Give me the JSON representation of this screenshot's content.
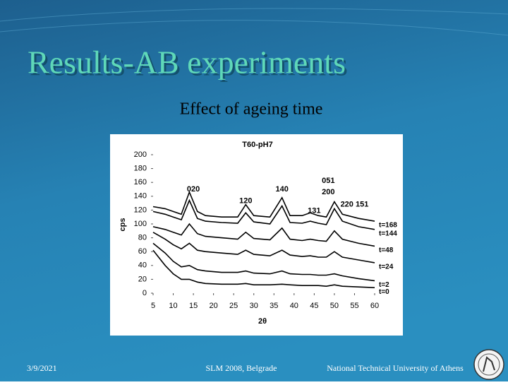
{
  "slide": {
    "title": "Results-AB experiments",
    "subtitle": "Effect of ageing time",
    "footer_date": "3/9/2021",
    "footer_event": "SLM 2008, Belgrade",
    "footer_org": "National Technical University of Athens"
  },
  "chart_data": {
    "type": "line",
    "title": "T60-pH7",
    "xlabel": "2θ",
    "ylabel": "cps",
    "x": [
      5,
      8,
      10,
      12,
      14,
      16,
      18,
      22,
      26,
      28,
      30,
      34,
      37,
      39,
      42,
      44,
      46,
      48,
      50,
      52,
      56,
      60
    ],
    "series": [
      {
        "name": "t=168",
        "color": "#000000",
        "values": [
          125,
          122,
          118,
          114,
          146,
          118,
          112,
          110,
          110,
          128,
          112,
          110,
          138,
          112,
          112,
          116,
          112,
          110,
          132,
          114,
          108,
          104
        ]
      },
      {
        "name": "t=144",
        "color": "#000000",
        "values": [
          118,
          114,
          110,
          106,
          134,
          108,
          104,
          102,
          101,
          116,
          103,
          100,
          126,
          102,
          101,
          104,
          101,
          99,
          122,
          104,
          96,
          92
        ]
      },
      {
        "name": "t=48",
        "color": "#000000",
        "values": [
          96,
          92,
          88,
          84,
          100,
          86,
          82,
          80,
          78,
          88,
          79,
          77,
          94,
          78,
          76,
          78,
          76,
          75,
          90,
          78,
          72,
          68
        ]
      },
      {
        "name": "t=24",
        "color": "#000000",
        "values": [
          88,
          78,
          70,
          64,
          72,
          62,
          60,
          58,
          56,
          62,
          56,
          54,
          62,
          55,
          53,
          54,
          52,
          52,
          60,
          52,
          48,
          44
        ]
      },
      {
        "name": "t=2",
        "color": "#000000",
        "values": [
          72,
          58,
          46,
          38,
          40,
          34,
          32,
          30,
          30,
          32,
          29,
          28,
          32,
          28,
          27,
          27,
          26,
          26,
          28,
          25,
          21,
          18
        ]
      },
      {
        "name": "t=0",
        "color": "#000000",
        "values": [
          62,
          40,
          28,
          20,
          20,
          16,
          14,
          13,
          13,
          14,
          12,
          12,
          13,
          12,
          11,
          11,
          11,
          10,
          12,
          10,
          9,
          8
        ]
      }
    ],
    "annotations": [
      {
        "text": "020",
        "x": 15,
        "y": 150
      },
      {
        "text": "120",
        "x": 28,
        "y": 133
      },
      {
        "text": "140",
        "x": 37,
        "y": 150
      },
      {
        "text": "131",
        "x": 45,
        "y": 119
      },
      {
        "text": "051",
        "x": 48.5,
        "y": 162
      },
      {
        "text": "200",
        "x": 48.5,
        "y": 146
      },
      {
        "text": "220 151",
        "x": 55,
        "y": 128
      }
    ],
    "xlim": [
      5,
      60
    ],
    "ylim": [
      0,
      200
    ],
    "xticks": [
      5,
      10,
      15,
      20,
      25,
      30,
      35,
      40,
      45,
      50,
      55,
      60
    ],
    "yticks": [
      0,
      20,
      40,
      60,
      80,
      100,
      120,
      140,
      160,
      180,
      200
    ]
  }
}
